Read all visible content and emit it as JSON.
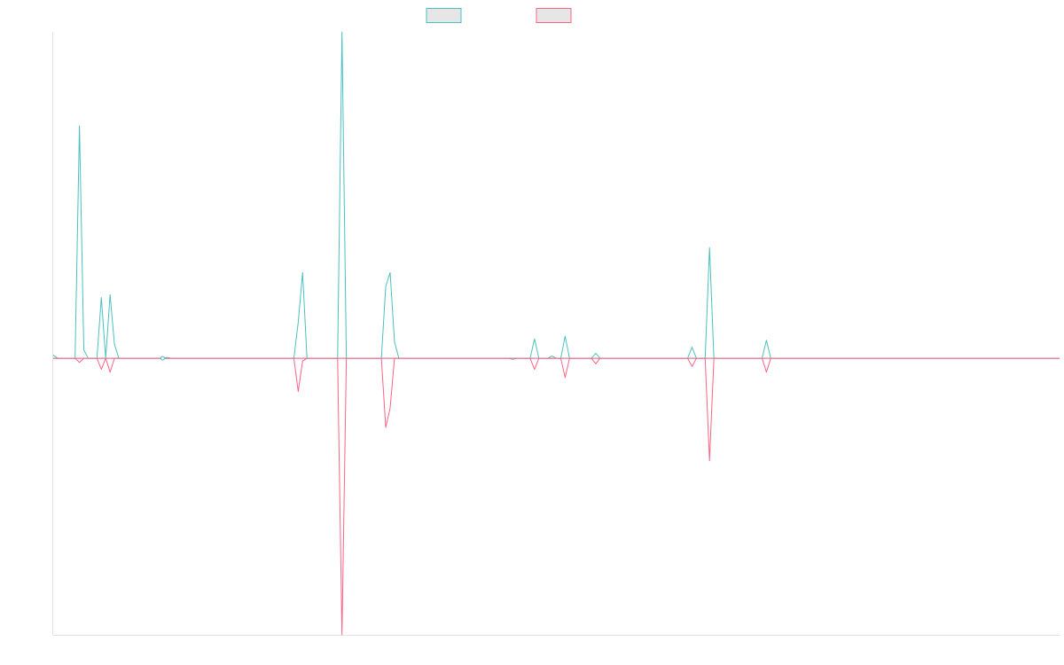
{
  "chart_data": {
    "type": "line",
    "title": "",
    "xlabel": "",
    "ylabel": "",
    "grid": false,
    "legend_position": "top-center",
    "ylim": [
      -100,
      118
    ],
    "x_count": 230,
    "series": [
      {
        "name": "",
        "color": "#4bc0c0",
        "legend_fill": "#e6e6e6",
        "points": [
          [
            0,
            1.2
          ],
          [
            1,
            0
          ],
          [
            5,
            0
          ],
          [
            6,
            84
          ],
          [
            7,
            3
          ],
          [
            8,
            0
          ],
          [
            10,
            0
          ],
          [
            11,
            22
          ],
          [
            12,
            0
          ],
          [
            13,
            23
          ],
          [
            14,
            5
          ],
          [
            15,
            0
          ],
          [
            25,
            0
          ],
          [
            26,
            0.3
          ],
          [
            27,
            0
          ],
          [
            55,
            0
          ],
          [
            56,
            13
          ],
          [
            57,
            31
          ],
          [
            58,
            0
          ],
          [
            65,
            0
          ],
          [
            66,
            118
          ],
          [
            67,
            0
          ],
          [
            75,
            0
          ],
          [
            76,
            26
          ],
          [
            77,
            31
          ],
          [
            78,
            6
          ],
          [
            79,
            0
          ],
          [
            230,
            0
          ]
        ]
      },
      {
        "name": "",
        "color": "#ff6384",
        "legend_fill": "#e6e6e6",
        "points": [
          [
            0,
            0
          ],
          [
            5,
            0
          ],
          [
            6,
            -1.5
          ],
          [
            7,
            0
          ],
          [
            10,
            0
          ],
          [
            11,
            -4
          ],
          [
            12,
            0
          ],
          [
            13,
            -5
          ],
          [
            14,
            0
          ],
          [
            55,
            0
          ],
          [
            56,
            -12
          ],
          [
            57,
            -1
          ],
          [
            58,
            0
          ],
          [
            65,
            0
          ],
          [
            66,
            -100
          ],
          [
            67,
            0
          ],
          [
            75,
            0
          ],
          [
            76,
            -25
          ],
          [
            77,
            -18
          ],
          [
            78,
            0
          ],
          [
            230,
            0
          ]
        ]
      },
      {
        "name": "",
        "color": "#4bc0c0",
        "legend_fill": "#e6e6e6",
        "points": [
          [
            0,
            0
          ],
          [
            104,
            0
          ],
          [
            105,
            -0.4
          ],
          [
            106,
            0
          ],
          [
            109,
            0
          ],
          [
            110,
            7
          ],
          [
            111,
            0
          ],
          [
            113,
            0
          ],
          [
            114,
            0.8
          ],
          [
            115,
            0
          ],
          [
            116,
            0
          ],
          [
            117,
            8
          ],
          [
            118,
            0
          ],
          [
            123,
            0
          ],
          [
            124,
            1.8
          ],
          [
            125,
            0
          ],
          [
            145,
            0
          ],
          [
            146,
            4
          ],
          [
            147,
            0
          ],
          [
            149,
            0
          ],
          [
            150,
            40
          ],
          [
            151,
            0
          ],
          [
            162,
            0
          ],
          [
            163,
            6.5
          ],
          [
            164,
            0
          ],
          [
            230,
            0
          ]
        ]
      },
      {
        "name": "",
        "color": "#ff6384",
        "legend_fill": "#e6e6e6",
        "points": [
          [
            0,
            0
          ],
          [
            109,
            0
          ],
          [
            110,
            -4
          ],
          [
            111,
            0
          ],
          [
            116,
            0
          ],
          [
            117,
            -7
          ],
          [
            118,
            0
          ],
          [
            123,
            0
          ],
          [
            124,
            -2
          ],
          [
            125,
            0
          ],
          [
            145,
            0
          ],
          [
            146,
            -3
          ],
          [
            147,
            0
          ],
          [
            149,
            0
          ],
          [
            150,
            -37
          ],
          [
            151,
            0
          ],
          [
            162,
            0
          ],
          [
            163,
            -5
          ],
          [
            164,
            0
          ],
          [
            230,
            0
          ]
        ]
      }
    ],
    "legend": [
      {
        "label": "",
        "border": "#4bc0c0",
        "fill": "#e6e6e6"
      },
      {
        "label": "",
        "border": "#ff6384",
        "fill": "#e6e6e6"
      }
    ]
  }
}
